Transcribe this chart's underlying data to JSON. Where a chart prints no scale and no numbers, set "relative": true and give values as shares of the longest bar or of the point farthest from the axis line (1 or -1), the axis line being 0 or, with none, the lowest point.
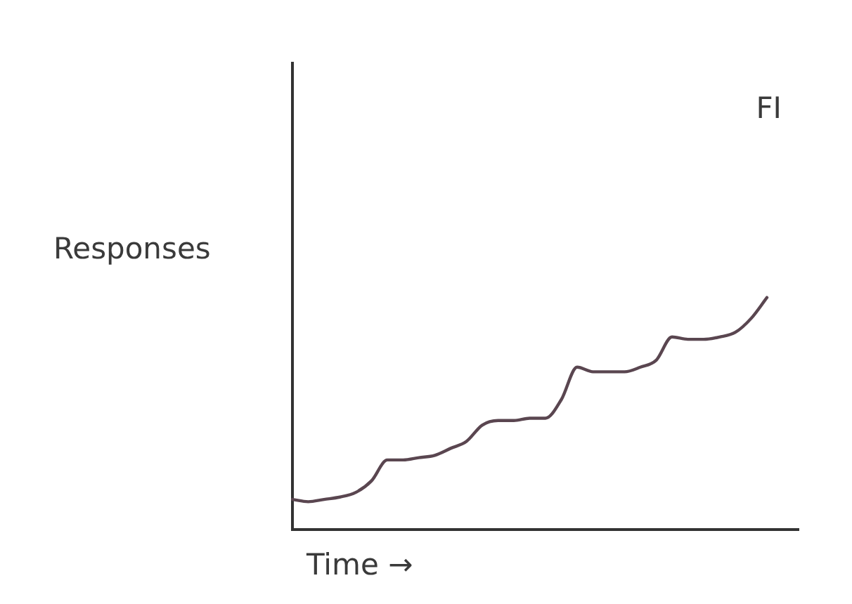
{
  "chart_data": {
    "type": "line",
    "relative": true,
    "xlabel": "Time →",
    "ylabel": "Responses",
    "annotations": [
      "FI"
    ],
    "categories": [
      null,
      null,
      null,
      null,
      null,
      null,
      null,
      null,
      null,
      null,
      null,
      null,
      null,
      null,
      null,
      null,
      null,
      null,
      null,
      null,
      null,
      null,
      null,
      null,
      null,
      null,
      null,
      null,
      null,
      null,
      null,
      null,
      null
    ],
    "series": [
      {
        "color": "#5a4650",
        "values": [
          0.13,
          0.12,
          0.13,
          0.14,
          0.16,
          0.21,
          0.3,
          0.3,
          0.31,
          0.32,
          0.35,
          0.38,
          0.45,
          0.47,
          0.47,
          0.48,
          0.48,
          0.56,
          0.7,
          0.68,
          0.68,
          0.68,
          0.7,
          0.73,
          0.83,
          0.82,
          0.82,
          0.83,
          0.85,
          0.91,
          1,
          null,
          null
        ]
      }
    ],
    "grid": false,
    "legend": false,
    "marker": "none",
    "line_style": "solid"
  }
}
